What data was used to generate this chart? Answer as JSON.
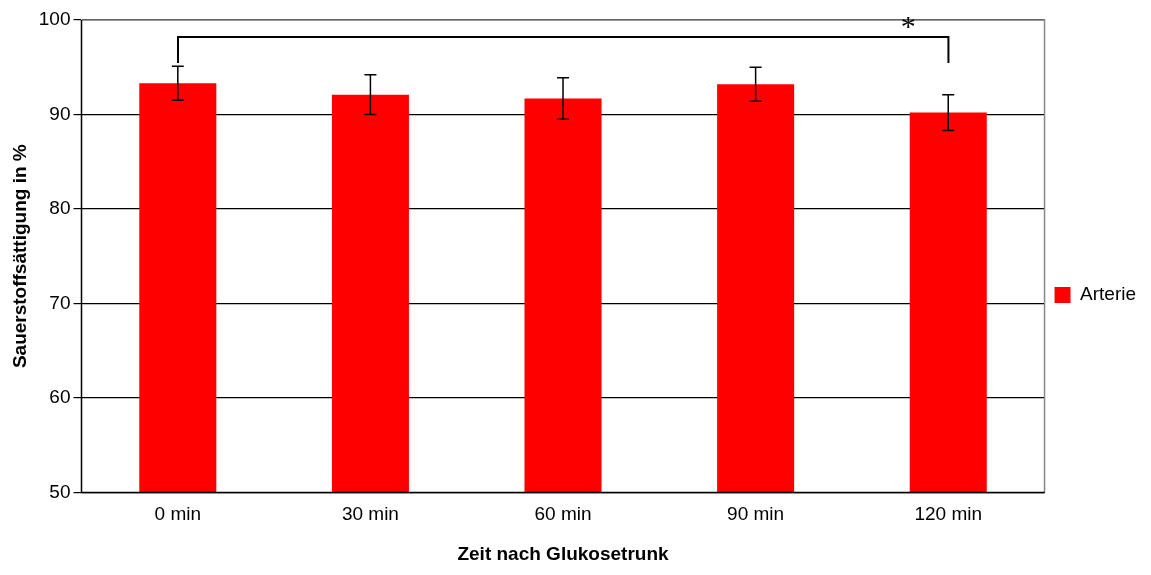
{
  "chart_data": {
    "type": "bar",
    "xlabel": "Zeit nach Glukosetrunk",
    "ylabel": "Sauerstoffsättigung in %",
    "categories": [
      "0 min",
      "30 min",
      "60 min",
      "90 min",
      "120 min"
    ],
    "series": [
      {
        "name": "Arterie",
        "color": "#ff0000",
        "values": [
          93.3,
          92.1,
          91.7,
          93.2,
          90.2
        ],
        "errors": [
          1.8,
          2.1,
          2.2,
          1.8,
          1.9
        ]
      }
    ],
    "ylim": [
      50,
      100
    ],
    "yticks": [
      50,
      60,
      70,
      80,
      90,
      100
    ],
    "grid": "y",
    "legend": "right",
    "annotations": [
      "*"
    ]
  }
}
